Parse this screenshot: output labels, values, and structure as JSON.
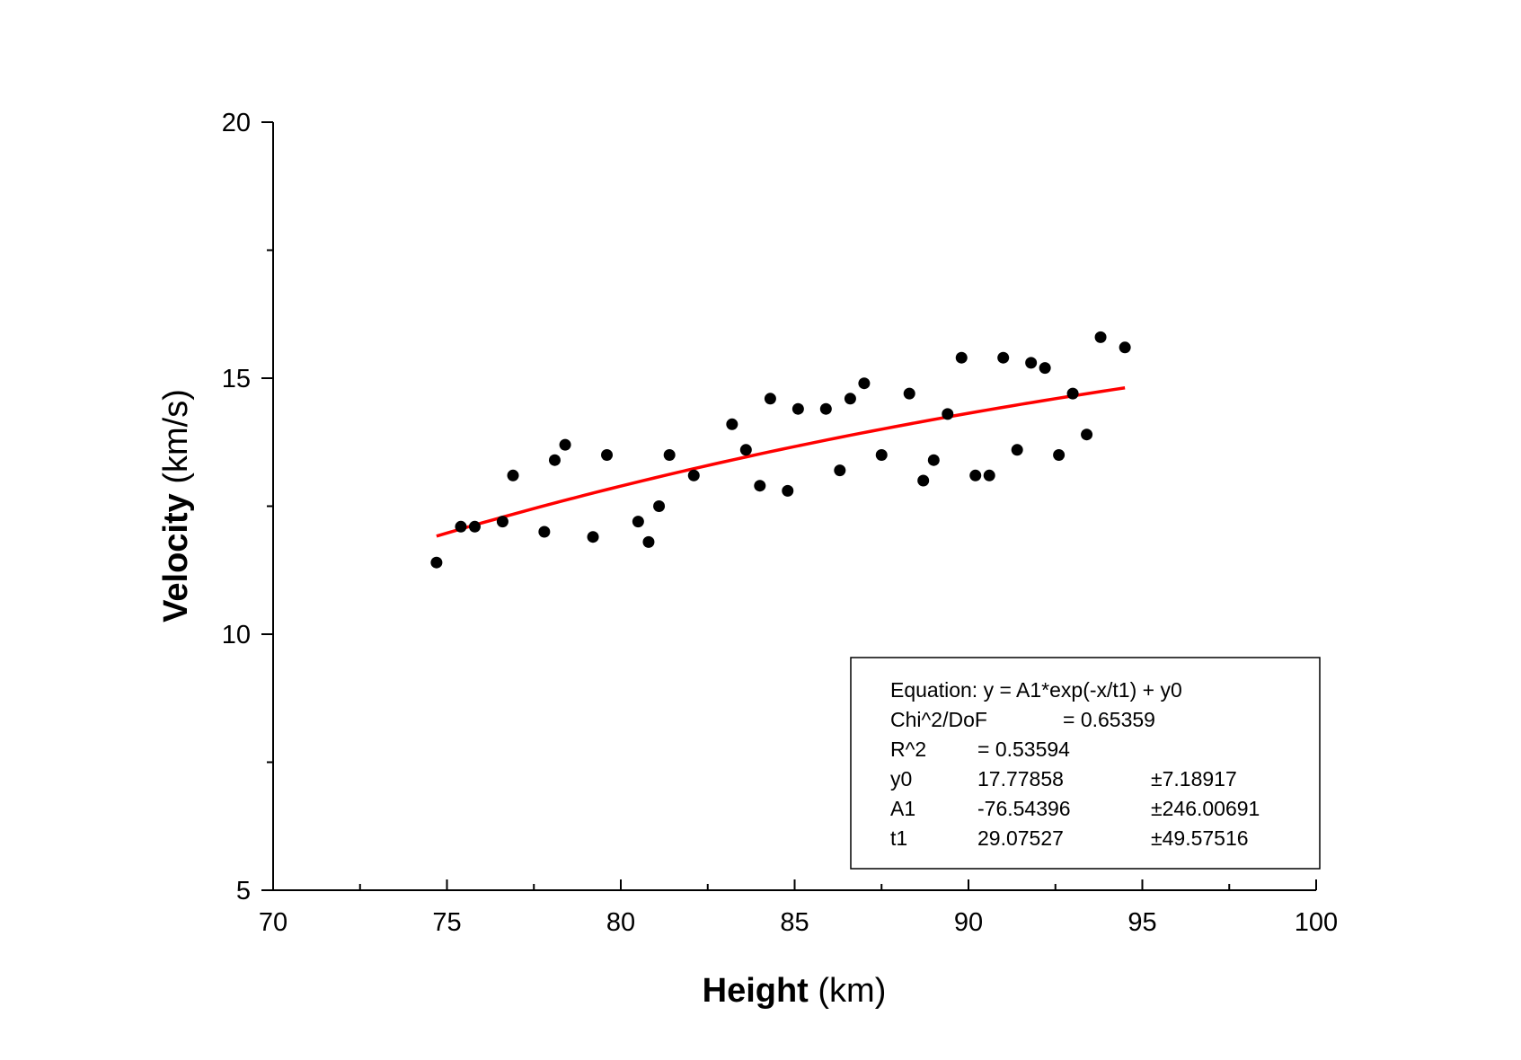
{
  "chart_data": {
    "type": "scatter",
    "xlabel": {
      "bold": "Height",
      "rest": " (km)"
    },
    "ylabel": {
      "bold": "Velocity",
      "rest": " (km/s)"
    },
    "xlim": [
      70,
      100
    ],
    "ylim": [
      5,
      20
    ],
    "x_ticks": [
      {
        "value": 70,
        "label": "70"
      },
      {
        "value": 75,
        "label": "75"
      },
      {
        "value": 80,
        "label": "80"
      },
      {
        "value": 85,
        "label": "85"
      },
      {
        "value": 90,
        "label": "90"
      },
      {
        "value": 95,
        "label": "95"
      },
      {
        "value": 100,
        "label": "100"
      }
    ],
    "y_ticks": [
      {
        "value": 5,
        "label": "5"
      },
      {
        "value": 10,
        "label": "10"
      },
      {
        "value": 15,
        "label": "15"
      },
      {
        "value": 20,
        "label": "20"
      }
    ],
    "x_minor_step": 2.5,
    "y_minor_step": 2.5,
    "grid": false,
    "points": [
      [
        74.7,
        11.4
      ],
      [
        75.4,
        12.1
      ],
      [
        75.8,
        12.1
      ],
      [
        76.6,
        12.2
      ],
      [
        76.9,
        13.1
      ],
      [
        77.8,
        12.0
      ],
      [
        78.1,
        13.4
      ],
      [
        78.4,
        13.7
      ],
      [
        79.2,
        11.9
      ],
      [
        79.6,
        13.5
      ],
      [
        80.5,
        12.2
      ],
      [
        80.8,
        11.8
      ],
      [
        81.1,
        12.5
      ],
      [
        81.4,
        13.5
      ],
      [
        82.1,
        13.1
      ],
      [
        83.2,
        14.1
      ],
      [
        83.6,
        13.6
      ],
      [
        84.0,
        12.9
      ],
      [
        84.3,
        14.6
      ],
      [
        84.8,
        12.8
      ],
      [
        85.1,
        14.4
      ],
      [
        85.9,
        14.4
      ],
      [
        86.3,
        13.2
      ],
      [
        86.6,
        14.6
      ],
      [
        87.0,
        14.9
      ],
      [
        87.5,
        13.5
      ],
      [
        88.3,
        14.7
      ],
      [
        88.7,
        13.0
      ],
      [
        89.0,
        13.4
      ],
      [
        89.4,
        14.3
      ],
      [
        89.8,
        15.4
      ],
      [
        90.2,
        13.1
      ],
      [
        90.6,
        13.1
      ],
      [
        91.0,
        15.4
      ],
      [
        91.4,
        13.6
      ],
      [
        91.8,
        15.3
      ],
      [
        92.2,
        15.2
      ],
      [
        92.6,
        13.5
      ],
      [
        93.0,
        14.7
      ],
      [
        93.4,
        13.9
      ],
      [
        93.8,
        15.8
      ],
      [
        94.5,
        15.6
      ]
    ],
    "point_color": "#000000",
    "fit": {
      "y0": 17.77858,
      "A1": -76.54396,
      "t1": 29.07527,
      "x_range": [
        74.7,
        94.5
      ],
      "color": "#ff0000"
    },
    "legend_placement": "bottom-right",
    "fit_box": {
      "equation": "Equation: y = A1*exp(-x/t1) + y0",
      "chi_label": "Chi^2/DoF",
      "chi_value": "= 0.65359",
      "r2_label": "R^2",
      "r2_value": "=  0.53594",
      "params": [
        {
          "name": "y0",
          "value": "17.77858",
          "error": "±7.18917"
        },
        {
          "name": "A1",
          "value": "-76.54396",
          "error": "±246.00691"
        },
        {
          "name": "t1",
          "value": "29.07527",
          "error": "±49.57516"
        }
      ]
    }
  }
}
